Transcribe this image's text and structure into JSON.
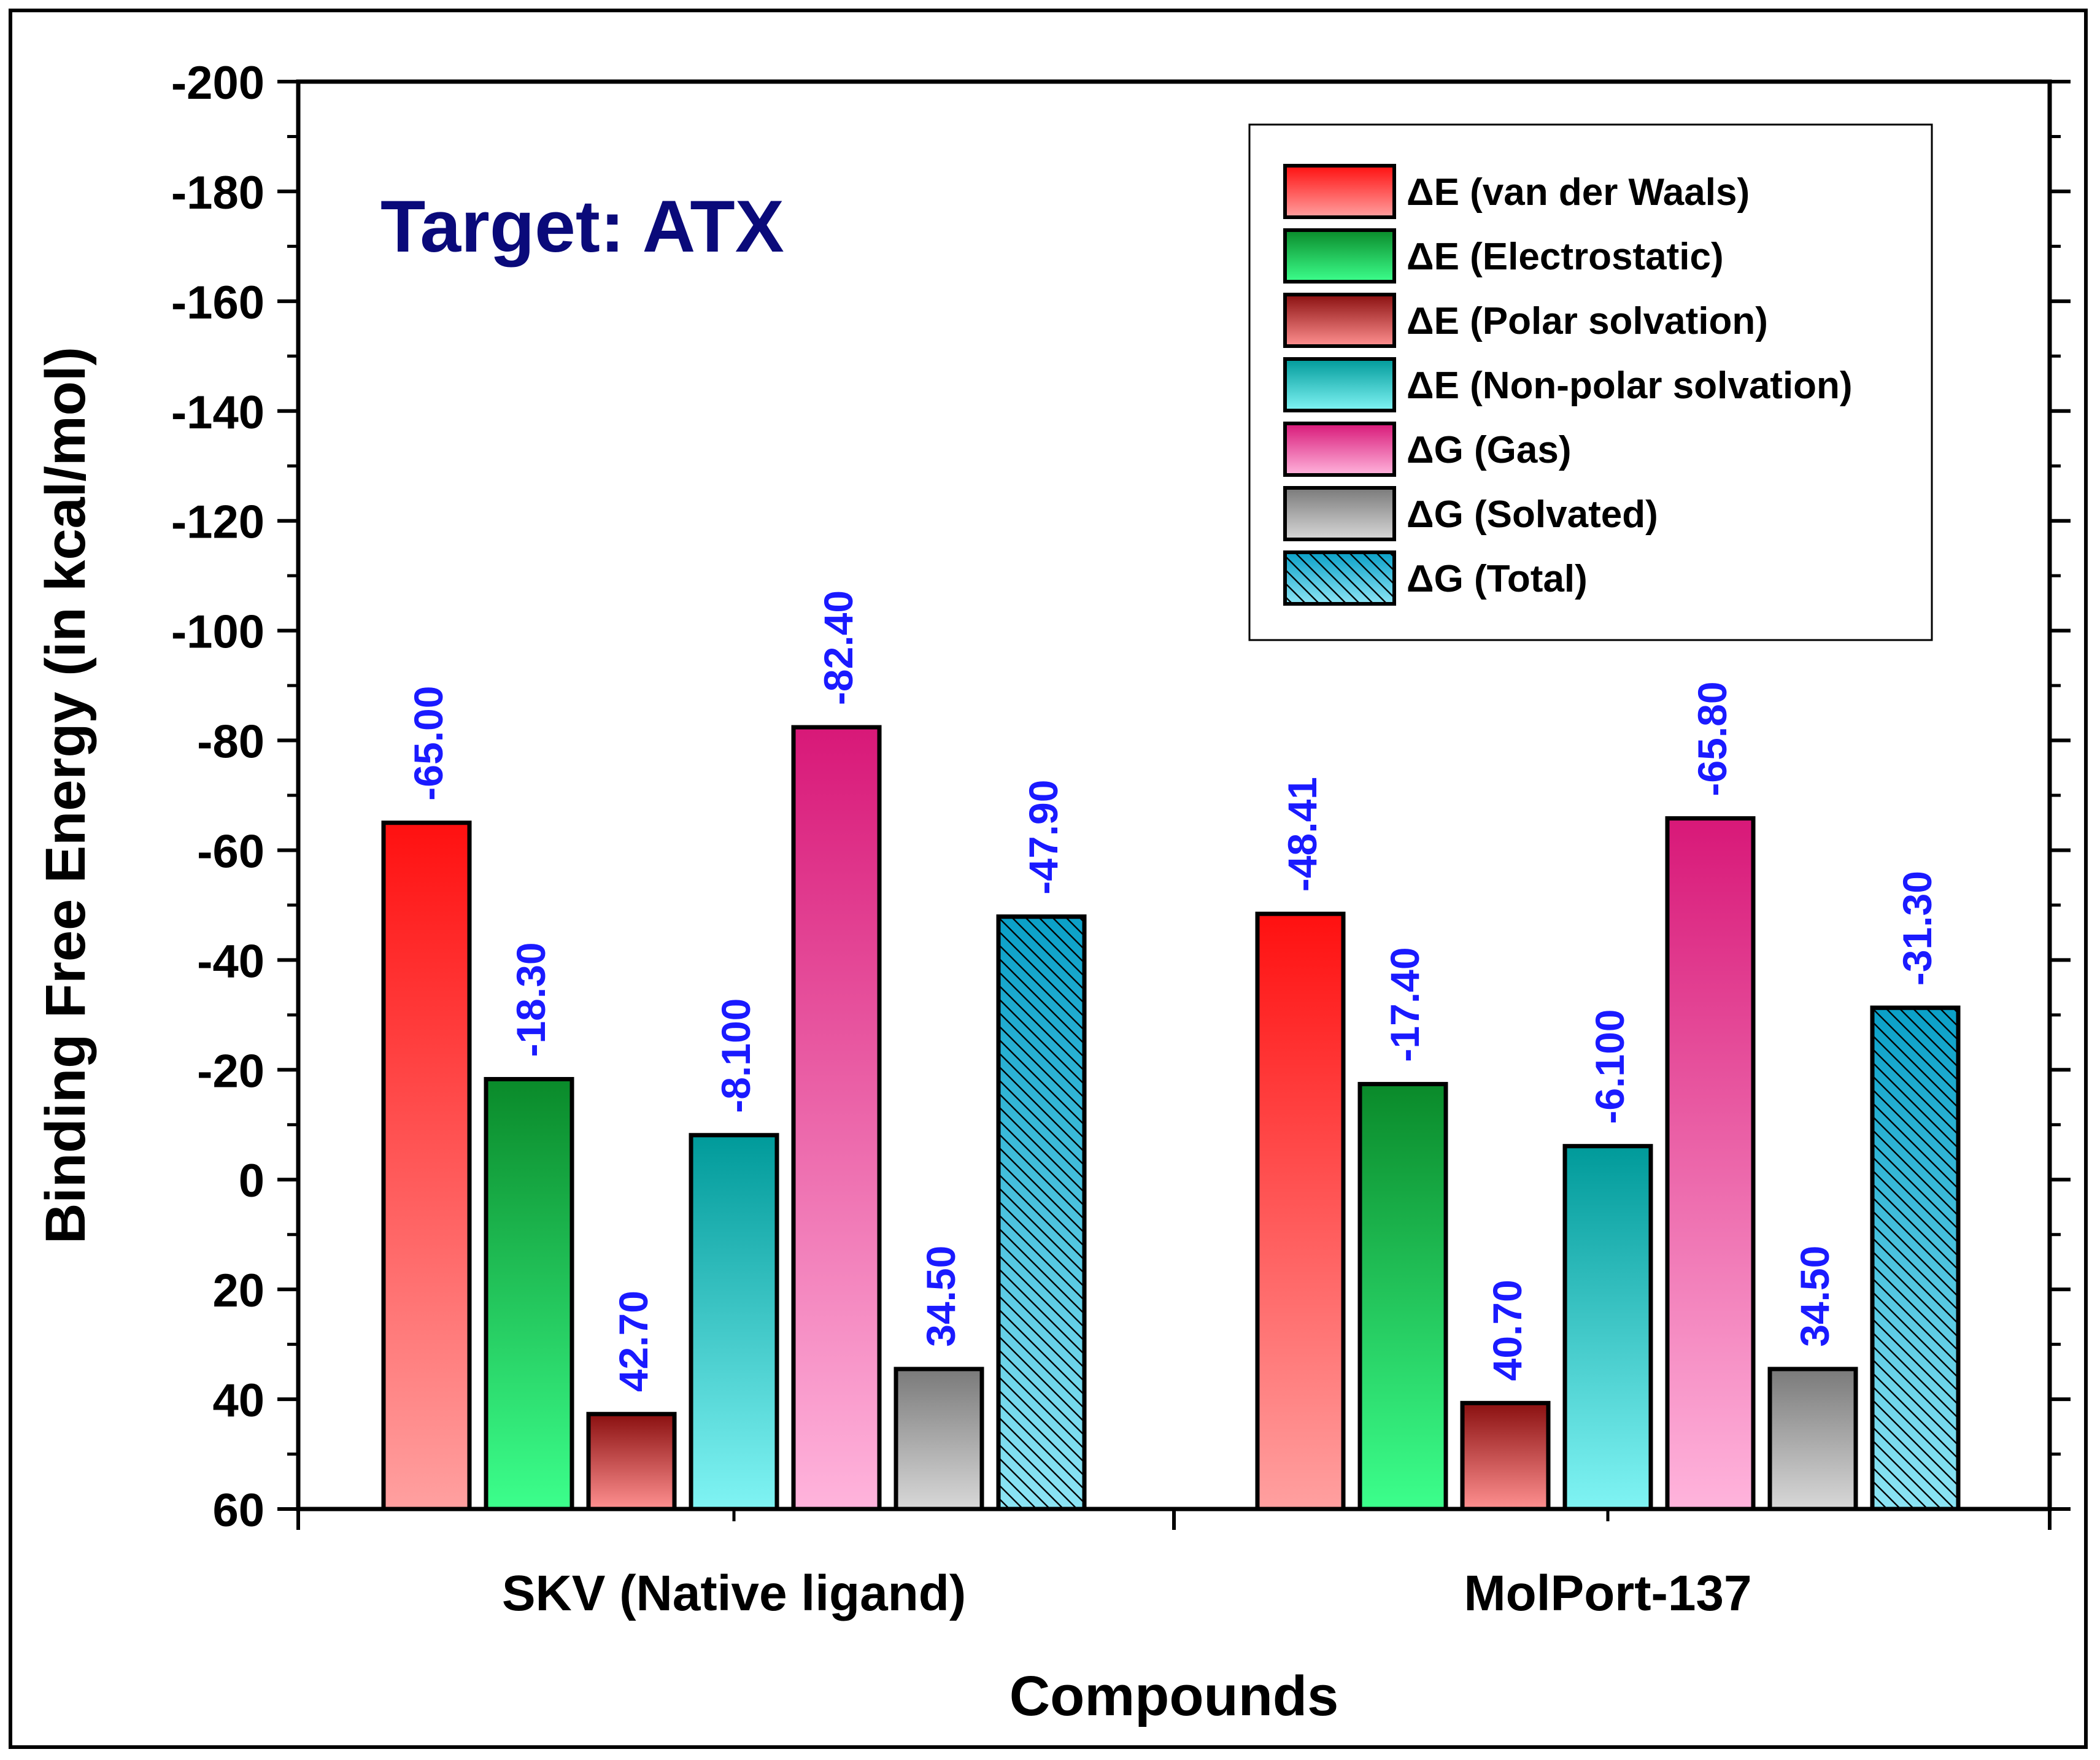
{
  "chart_data": {
    "type": "bar",
    "title": "Target: ATX",
    "xlabel": "Compounds",
    "ylabel": "Binding Free Energy (in kcal/mol)",
    "ylim": [
      60,
      -200
    ],
    "y_axis_inverted": true,
    "yticks": [
      -200,
      -180,
      -160,
      -140,
      -120,
      -100,
      -80,
      -60,
      -40,
      -20,
      0,
      20,
      40,
      60
    ],
    "ytick_labels": [
      "-200",
      "-180",
      "-160",
      "-140",
      "-120",
      "-100",
      "-80",
      "-60",
      "-40",
      "-20",
      "0",
      "20",
      "40",
      "60"
    ],
    "categories": [
      "SKV (Native ligand)",
      "MolPort-137"
    ],
    "series": [
      {
        "name": "ΔE (van der Waals)",
        "values": [
          -65.0,
          -48.41
        ],
        "labels": [
          "-65.00",
          "-48.41"
        ],
        "color_top": "#ff1010",
        "color_bottom": "#ffa0a0",
        "hatch": false
      },
      {
        "name": "ΔE (Electrostatic)",
        "values": [
          -18.3,
          -17.4
        ],
        "labels": [
          "-18.30",
          "-17.40"
        ],
        "color_top": "#0a8a2a",
        "color_bottom": "#3cff8c",
        "hatch": false
      },
      {
        "name": "ΔE (Polar solvation)",
        "values": [
          42.7,
          40.7
        ],
        "labels": [
          "42.70",
          "40.70"
        ],
        "color_top": "#8a1010",
        "color_bottom": "#ff9090",
        "hatch": false
      },
      {
        "name": "ΔE (Non-polar solvation)",
        "values": [
          -8.1,
          -6.1
        ],
        "labels": [
          "-8.100",
          "-6.100"
        ],
        "color_top": "#009a9a",
        "color_bottom": "#80f4f4",
        "hatch": false
      },
      {
        "name": "ΔG (Gas)",
        "values": [
          -82.4,
          -65.8
        ],
        "labels": [
          "-82.40",
          "-65.80"
        ],
        "color_top": "#d81878",
        "color_bottom": "#ffb4dc",
        "hatch": false
      },
      {
        "name": "ΔG (Solvated)",
        "values": [
          34.5,
          34.5
        ],
        "labels": [
          "34.50",
          "34.50"
        ],
        "color_top": "#7a7a7a",
        "color_bottom": "#d8d8d8",
        "hatch": false
      },
      {
        "name": "ΔG (Total)",
        "values": [
          -47.9,
          -31.3
        ],
        "labels": [
          "-47.90",
          "-31.30"
        ],
        "color_top": "#0aa0c8",
        "color_bottom": "#8ce4f4",
        "hatch": true
      }
    ],
    "legend_position": "top-right",
    "label_color": "#1a1aff",
    "title_color": "#0a0a7a"
  }
}
